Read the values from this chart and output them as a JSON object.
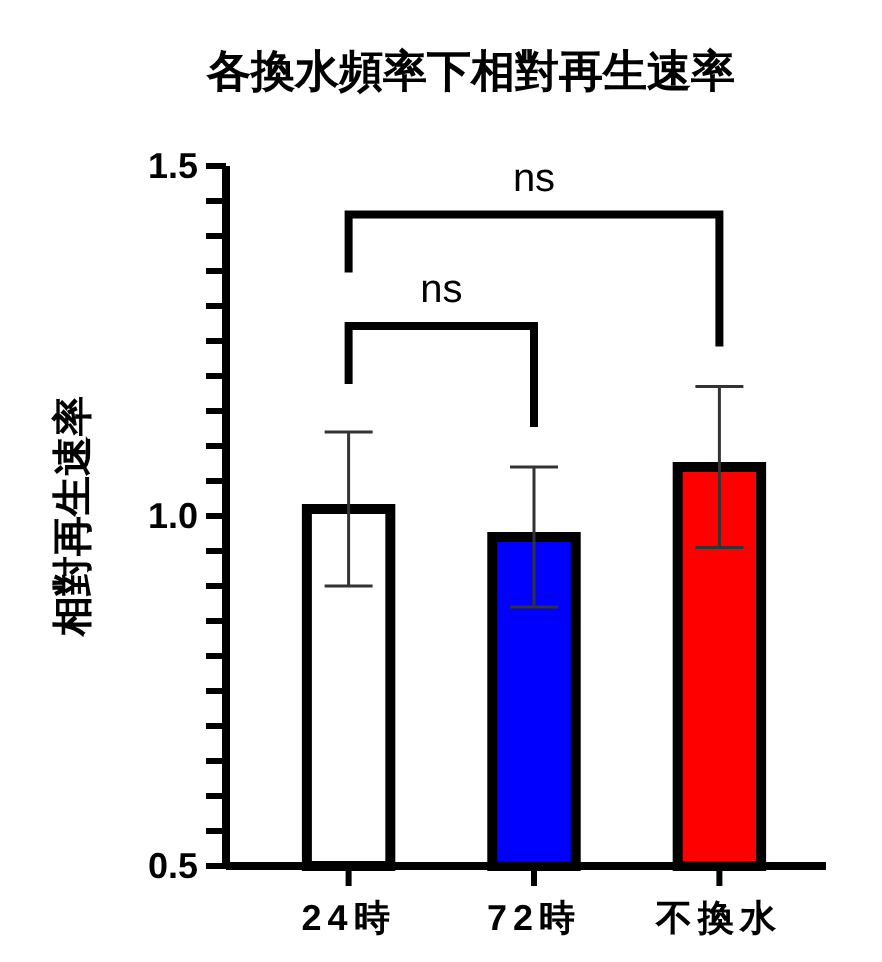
{
  "chart_data": {
    "type": "bar",
    "title": "各換水頻率下相對再生速率",
    "ylabel": "相對再生速率",
    "categories": [
      "24時",
      "72時",
      "不換水"
    ],
    "values": [
      1.01,
      0.97,
      1.07
    ],
    "errors": [
      0.11,
      0.1,
      0.115
    ],
    "colors": [
      "#ffffff",
      "#0000ff",
      "#ff0000"
    ],
    "ylim": [
      0.5,
      1.5
    ],
    "yticks": [
      0.5,
      {
        "value": 0.55,
        "label": null
      },
      {
        "value": 0.6,
        "label": null
      },
      {
        "value": 0.65,
        "label": null
      },
      {
        "value": 0.7,
        "label": null
      },
      {
        "value": 0.75,
        "label": null
      },
      {
        "value": 0.8,
        "label": null
      },
      {
        "value": 0.85,
        "label": null
      },
      {
        "value": 0.9,
        "label": null
      },
      {
        "value": 0.95,
        "label": null
      },
      {
        "value": 1.0,
        "label": "1.0"
      },
      {
        "value": 1.05,
        "label": null
      },
      {
        "value": 1.1,
        "label": null
      },
      {
        "value": 1.15,
        "label": null
      },
      {
        "value": 1.2,
        "label": null
      },
      {
        "value": 1.25,
        "label": null
      },
      {
        "value": 1.3,
        "label": null
      },
      {
        "value": 1.35,
        "label": null
      },
      {
        "value": 1.4,
        "label": null
      },
      {
        "value": 1.45,
        "label": null
      },
      1.5
    ],
    "annotations": [
      "ns",
      "ns"
    ]
  }
}
